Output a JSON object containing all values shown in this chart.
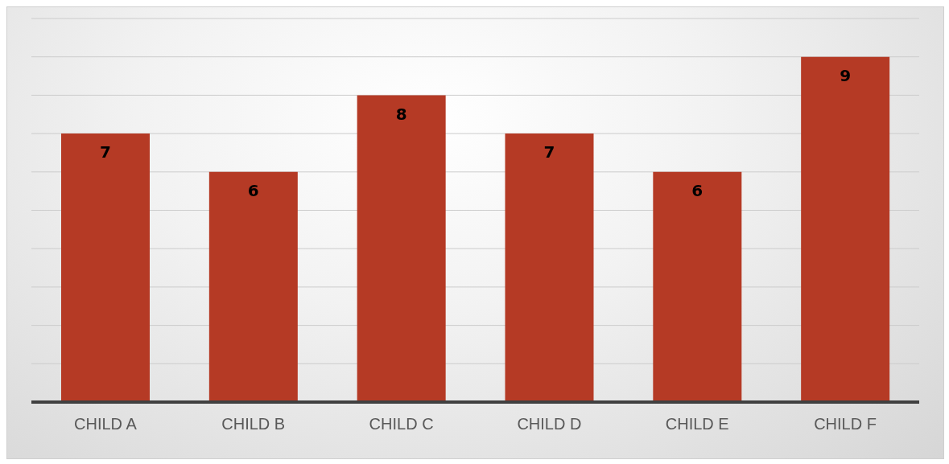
{
  "chart_data": {
    "type": "bar",
    "categories": [
      "CHILD A",
      "CHILD B",
      "CHILD C",
      "CHILD D",
      "CHILD E",
      "CHILD F"
    ],
    "values": [
      7,
      6,
      8,
      7,
      6,
      9
    ],
    "color": "#b53a25",
    "data_labels": true,
    "ylim": [
      0,
      10
    ],
    "yticks": [
      {
        "value": 0,
        "label": null
      },
      {
        "value": 1,
        "label": null
      },
      {
        "value": 2,
        "label": null
      },
      {
        "value": 3,
        "label": null
      },
      {
        "value": 4,
        "label": null
      },
      {
        "value": 5,
        "label": null
      },
      {
        "value": 6,
        "label": null
      },
      {
        "value": 7,
        "label": null
      },
      {
        "value": 8,
        "label": null
      },
      {
        "value": 9,
        "label": null
      },
      {
        "value": 10,
        "label": null
      }
    ],
    "grid": "y",
    "tick_labels": "x"
  }
}
